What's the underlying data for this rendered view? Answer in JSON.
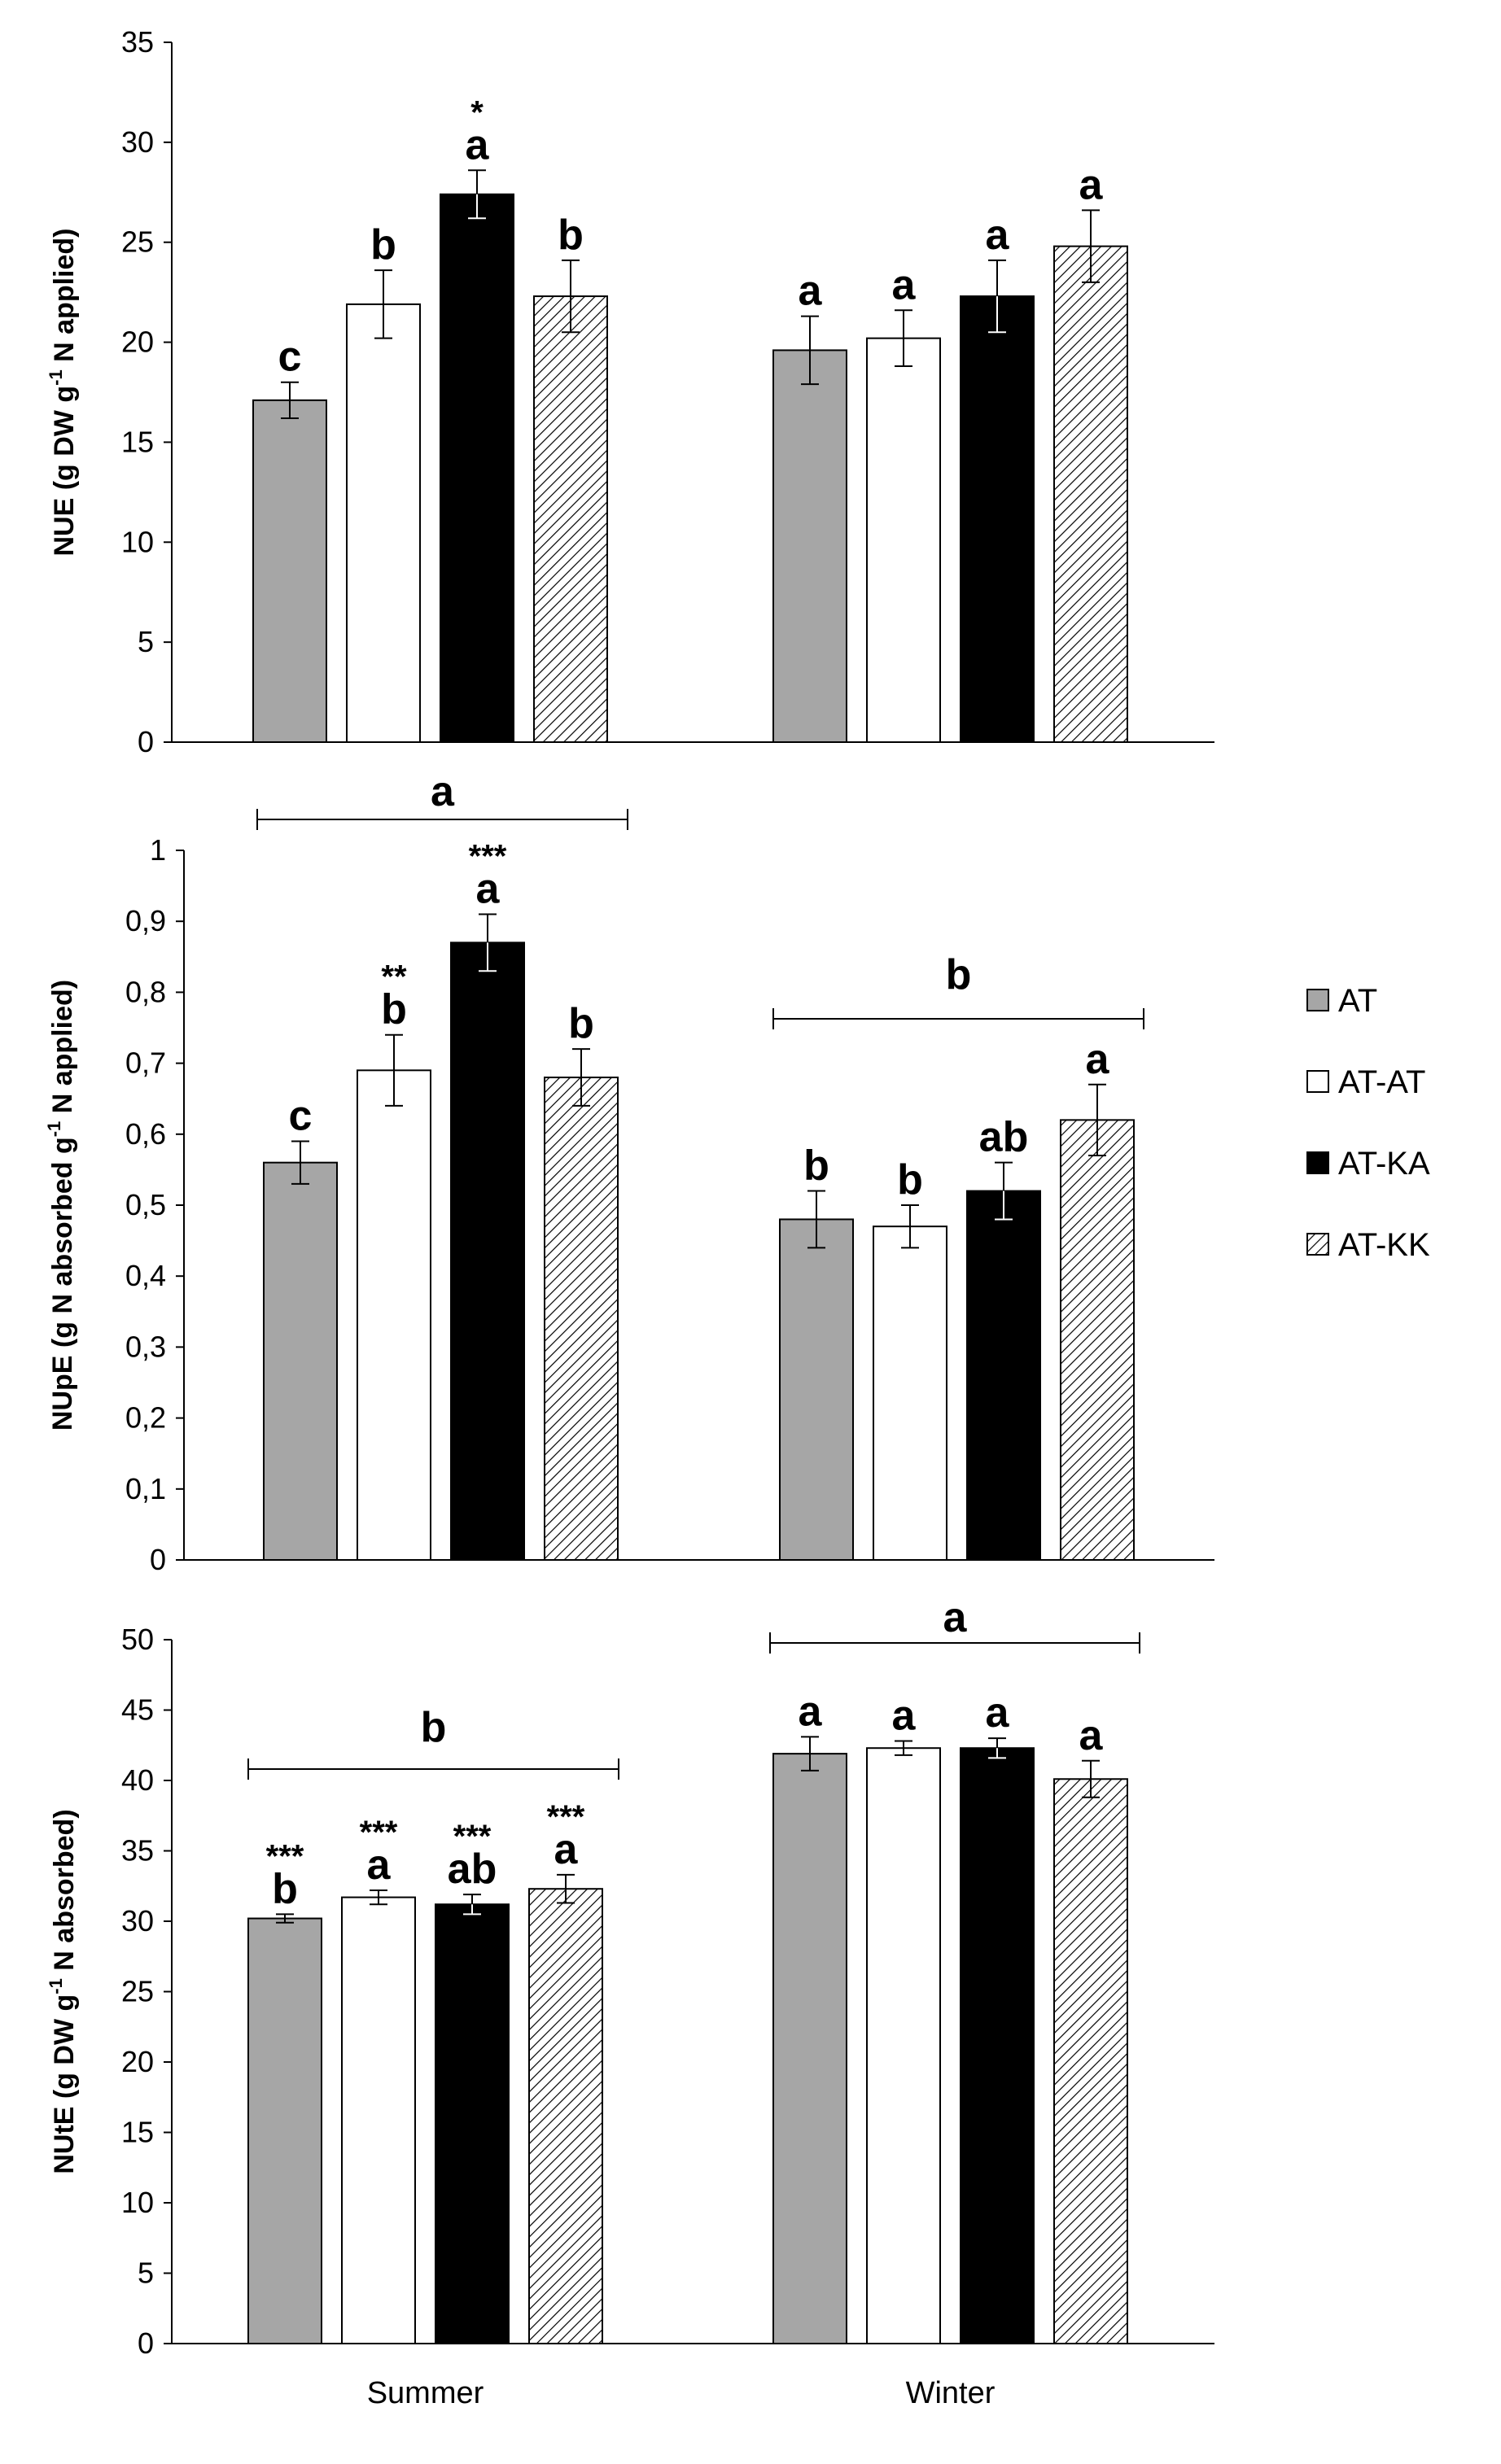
{
  "colors": {
    "AT": "#a6a6a6",
    "AT-AT": "#ffffff",
    "AT-KA": "#000000",
    "AT-KK": "hatch"
  },
  "chart_data": [
    {
      "type": "bar",
      "panel": "top",
      "ylabel": {
        "pre": "NUE (g DW g",
        "sup": "-1",
        "post": " N applied)"
      },
      "ylim": [
        0,
        35
      ],
      "yticks": [
        0,
        5,
        10,
        15,
        20,
        25,
        30,
        35
      ],
      "ytick_labels": [
        "0",
        "5",
        "10",
        "15",
        "20",
        "25",
        "30",
        "35"
      ],
      "categories": [
        "Summer",
        "Winter"
      ],
      "series": [
        {
          "name": "AT",
          "values": [
            17.1,
            19.6
          ],
          "errors": [
            0.9,
            1.7
          ],
          "letters": [
            "c",
            "a"
          ],
          "stars": [
            "",
            ""
          ]
        },
        {
          "name": "AT-AT",
          "values": [
            21.9,
            20.2
          ],
          "errors": [
            1.7,
            1.4
          ],
          "letters": [
            "b",
            "a"
          ],
          "stars": [
            "",
            ""
          ]
        },
        {
          "name": "AT-KA",
          "values": [
            27.4,
            22.3
          ],
          "errors": [
            1.2,
            1.8
          ],
          "letters": [
            "a",
            "a"
          ],
          "stars": [
            "*",
            ""
          ]
        },
        {
          "name": "AT-KK",
          "values": [
            22.3,
            24.8
          ],
          "errors": [
            1.8,
            1.8
          ],
          "letters": [
            "b",
            "a"
          ],
          "stars": [
            "",
            ""
          ]
        }
      ],
      "group_letters": []
    },
    {
      "type": "bar",
      "panel": "middle",
      "ylabel": {
        "pre": "NUpE (g N absorbed g",
        "sup": "-1",
        "post": " N applied)"
      },
      "ylim": [
        0,
        1
      ],
      "yticks": [
        0,
        0.1,
        0.2,
        0.3,
        0.4,
        0.5,
        0.6,
        0.7,
        0.8,
        0.9,
        1
      ],
      "ytick_labels": [
        "0",
        "0,1",
        "0,2",
        "0,3",
        "0,4",
        "0,5",
        "0,6",
        "0,7",
        "0,8",
        "0,9",
        "1"
      ],
      "categories": [
        "Summer",
        "Winter"
      ],
      "series": [
        {
          "name": "AT",
          "values": [
            0.56,
            0.48
          ],
          "errors": [
            0.03,
            0.04
          ],
          "letters": [
            "c",
            "b"
          ],
          "stars": [
            "",
            ""
          ]
        },
        {
          "name": "AT-AT",
          "values": [
            0.69,
            0.47
          ],
          "errors": [
            0.05,
            0.03
          ],
          "letters": [
            "b",
            "b"
          ],
          "stars": [
            "**",
            ""
          ]
        },
        {
          "name": "AT-KA",
          "values": [
            0.87,
            0.52
          ],
          "errors": [
            0.04,
            0.04
          ],
          "letters": [
            "a",
            "ab"
          ],
          "stars": [
            "***",
            ""
          ]
        },
        {
          "name": "AT-KK",
          "values": [
            0.68,
            0.62
          ],
          "errors": [
            0.04,
            0.05
          ],
          "letters": [
            "b",
            "a"
          ],
          "stars": [
            "",
            ""
          ]
        }
      ],
      "group_letters": [
        "a",
        "b"
      ]
    },
    {
      "type": "bar",
      "panel": "bottom",
      "ylabel": {
        "pre": "NUtE (g DW g",
        "sup": "-1",
        "post": " N absorbed)"
      },
      "ylim": [
        0,
        50
      ],
      "yticks": [
        0,
        5,
        10,
        15,
        20,
        25,
        30,
        35,
        40,
        45,
        50
      ],
      "ytick_labels": [
        "0",
        "5",
        "10",
        "15",
        "20",
        "25",
        "30",
        "35",
        "40",
        "45",
        "50"
      ],
      "categories": [
        "Summer",
        "Winter"
      ],
      "series": [
        {
          "name": "AT",
          "values": [
            30.2,
            41.9
          ],
          "errors": [
            0.3,
            1.2
          ],
          "letters": [
            "b",
            "a"
          ],
          "stars": [
            "***",
            ""
          ]
        },
        {
          "name": "AT-AT",
          "values": [
            31.7,
            42.3
          ],
          "errors": [
            0.5,
            0.5
          ],
          "letters": [
            "a",
            "a"
          ],
          "stars": [
            "***",
            ""
          ]
        },
        {
          "name": "AT-KA",
          "values": [
            31.2,
            42.3
          ],
          "errors": [
            0.7,
            0.7
          ],
          "letters": [
            "ab",
            "a"
          ],
          "stars": [
            "***",
            ""
          ]
        },
        {
          "name": "AT-KK",
          "values": [
            32.3,
            40.1
          ],
          "errors": [
            1.0,
            1.3
          ],
          "letters": [
            "a",
            "a"
          ],
          "stars": [
            "***",
            ""
          ]
        }
      ],
      "group_letters": [
        "b",
        "a"
      ]
    }
  ],
  "legend": [
    "AT",
    "AT-AT",
    "AT-KA",
    "AT-KK"
  ]
}
